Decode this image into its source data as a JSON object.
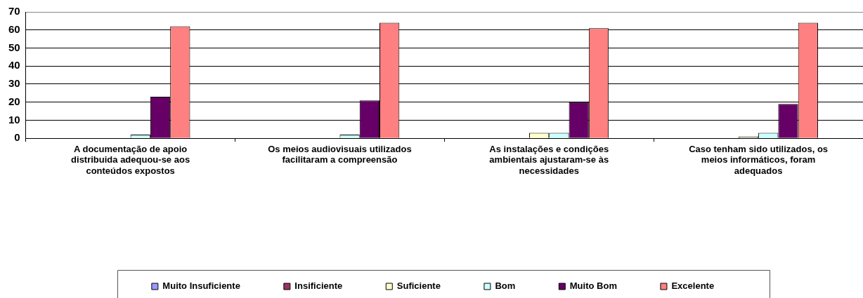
{
  "chart_data": {
    "type": "bar",
    "categories": [
      "A documentação de apoio distribuida adequou-se aos conteúdos expostos",
      "Os meios audiovisuais utilizados facilitaram a compreensão",
      "As instalações e condições ambientais ajustaram-se às necessidades",
      "Caso tenham sido utilizados, os meios informáticos, foram adequados"
    ],
    "series": [
      {
        "name": "Muito Insuficiente",
        "color": "#9999ff",
        "values": [
          0,
          0,
          0,
          0
        ]
      },
      {
        "name": "Insificiente",
        "color": "#993366",
        "values": [
          0,
          0,
          0,
          0
        ]
      },
      {
        "name": "Suficiente",
        "color": "#ffffcc",
        "values": [
          0,
          0,
          3,
          1
        ]
      },
      {
        "name": "Bom",
        "color": "#ccffff",
        "values": [
          2,
          2,
          3,
          3
        ]
      },
      {
        "name": "Muito Bom",
        "color": "#660066",
        "values": [
          23,
          21,
          20,
          19
        ]
      },
      {
        "name": "Excelente",
        "color": "#ff8080",
        "values": [
          62,
          64,
          61,
          64
        ]
      }
    ],
    "ylim": [
      0,
      70
    ],
    "yticks": [
      0,
      10,
      20,
      30,
      40,
      50,
      60,
      70
    ],
    "grid": "y",
    "legend": "bottom"
  }
}
